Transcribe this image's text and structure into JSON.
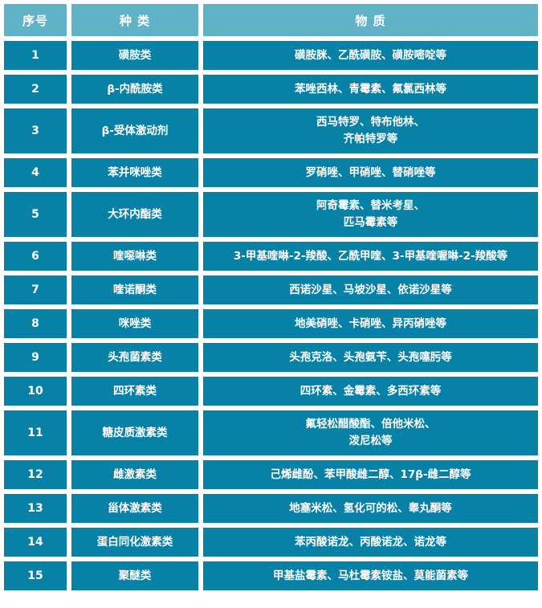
{
  "chart_data": {
    "type": "table",
    "columns": [
      "序号",
      "种 类",
      "物 质"
    ],
    "rows": [
      {
        "no": "1",
        "category": "磺胺类",
        "substances": [
          "磺胺脒、乙酰磺胺、磺胺嘧啶等"
        ]
      },
      {
        "no": "2",
        "category": "β-内酰胺类",
        "substances": [
          "苯唑西林、青霉素、氟氯西林等"
        ]
      },
      {
        "no": "3",
        "category": "β-受体激动剂",
        "substances": [
          "西马特罗、特布他林、",
          "齐帕特罗等"
        ]
      },
      {
        "no": "4",
        "category": "苯并咪唑类",
        "substances": [
          "罗硝唑、甲硝唑、替硝唑等"
        ]
      },
      {
        "no": "5",
        "category": "大环内酯类",
        "substances": [
          "阿奇霉素、替米考星、",
          "匹马霉素等"
        ]
      },
      {
        "no": "6",
        "category": "喹噁啉类",
        "substances": [
          "3-甲基喹啉-2-羧酸、乙酰甲喹、3-甲基喹喔啉-2-羧酸等"
        ]
      },
      {
        "no": "7",
        "category": "喹诺酮类",
        "substances": [
          "西诺沙星、马坡沙星、依诺沙星等"
        ]
      },
      {
        "no": "8",
        "category": "咪唑类",
        "substances": [
          "地美硝唑、卡硝唑、异丙硝唑等"
        ]
      },
      {
        "no": "9",
        "category": "头孢菌素类",
        "substances": [
          "头孢克洛、头孢氨苄、头孢噻肟等"
        ]
      },
      {
        "no": "10",
        "category": "四环素类",
        "substances": [
          "四环素、金霉素、多西环素等"
        ]
      },
      {
        "no": "11",
        "category": "糖皮质激素类",
        "substances": [
          "氟轻松醋酸酯、倍他米松、",
          "泼尼松等"
        ]
      },
      {
        "no": "12",
        "category": "雌激素类",
        "substances": [
          "己烯雌酚、苯甲酸雌二醇、17β-雌二醇等"
        ]
      },
      {
        "no": "13",
        "category": "甾体激素类",
        "substances": [
          "地塞米松、氢化可的松、睾丸酮等"
        ]
      },
      {
        "no": "14",
        "category": "蛋白同化激素类",
        "substances": [
          "苯丙酸诺龙、丙酸诺龙、诺龙等"
        ]
      },
      {
        "no": "15",
        "category": "聚醚类",
        "substances": [
          "甲基盐霉素、马杜霉素铵盐、莫能菌素等"
        ]
      }
    ]
  },
  "colors": {
    "header_bg": "#60b3c6",
    "cell_bg": "#0881a6",
    "text": "#ffffff",
    "gap_bg": "#ffffff"
  }
}
